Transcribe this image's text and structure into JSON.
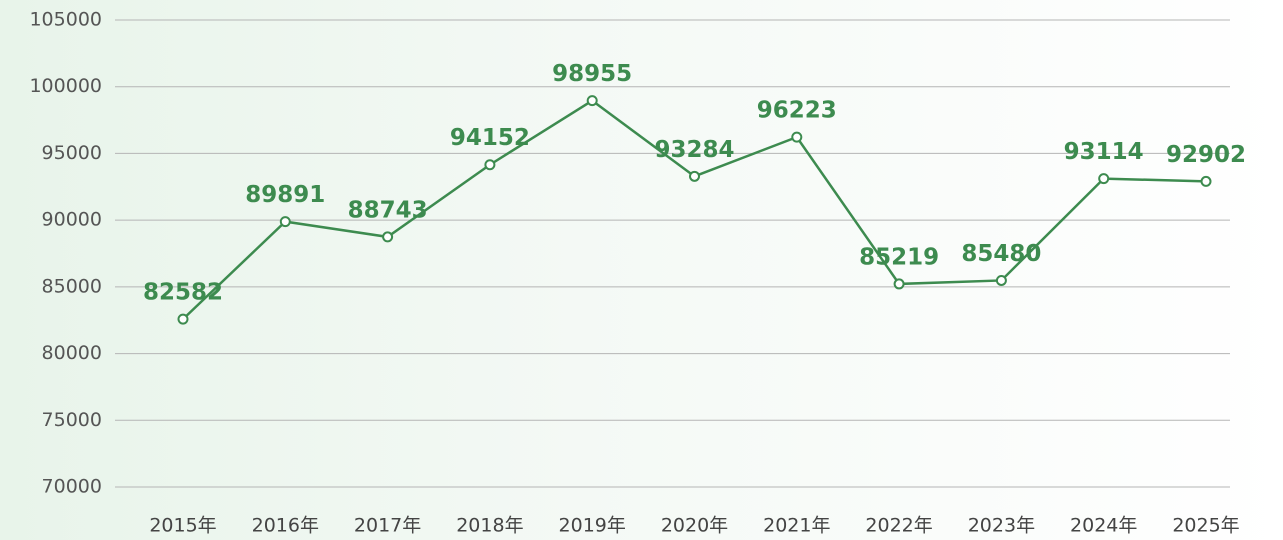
{
  "chart_data": {
    "type": "line",
    "categories": [
      "2015年",
      "2016年",
      "2017年",
      "2018年",
      "2019年",
      "2020年",
      "2021年",
      "2022年",
      "2023年",
      "2024年",
      "2025年"
    ],
    "values": [
      82582,
      89891,
      88743,
      94152,
      98955,
      93284,
      96223,
      85219,
      85480,
      93114,
      92902
    ],
    "color": "#3d8b4f",
    "ylim": [
      70000,
      105000
    ],
    "yticks": [
      70000,
      75000,
      80000,
      85000,
      90000,
      95000,
      100000,
      105000
    ],
    "grid": true
  }
}
